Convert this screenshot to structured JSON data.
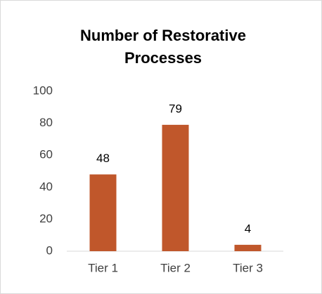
{
  "chart_data": {
    "type": "bar",
    "title": [
      "Number of Restorative",
      "Processes"
    ],
    "categories": [
      "Tier 1",
      "Tier 2",
      "Tier 3"
    ],
    "values": [
      48,
      79,
      4
    ],
    "color": "#c0572b",
    "ylim": [
      0,
      100
    ],
    "yticks": [
      0,
      20,
      40,
      60,
      80,
      100
    ],
    "grid": false
  }
}
